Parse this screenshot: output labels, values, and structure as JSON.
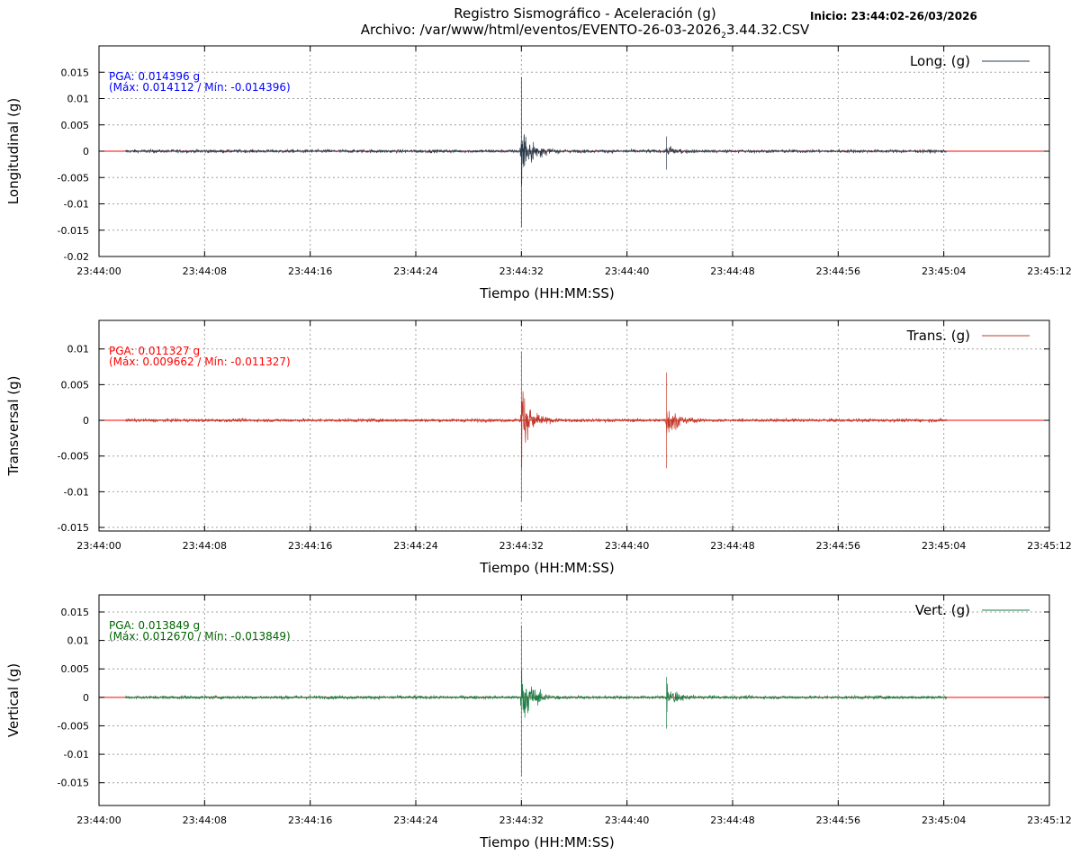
{
  "header": {
    "title_line1": "Registro Sismográfico - Aceleración (g)",
    "title_line2_a": "Archivo: /var/www/html/eventos/EVENTO-26-03-2026",
    "title_line2_sub": "2",
    "title_line2_b": "3.44.32.CSV",
    "start_label": "Inicio: 23:44:02-26/03/2026"
  },
  "chart_data": [
    {
      "type": "line",
      "ylabel": "Longitudinal (g)",
      "xlabel": "Tiempo (HH:MM:SS)",
      "xlim": [
        0,
        72
      ],
      "ylim": [
        -0.02,
        0.02
      ],
      "yticks": [
        0.015,
        0.01,
        0.005,
        0,
        -0.005,
        -0.01,
        -0.015,
        -0.02
      ],
      "ytick_labels": [
        "0.015",
        "0.01",
        "0.005",
        "0",
        "-0.005",
        "-0.01",
        "-0.015",
        "-0.02"
      ],
      "xticks": [
        0,
        8,
        16,
        24,
        32,
        40,
        48,
        56,
        64,
        72
      ],
      "xtick_labels": [
        "23:44:00",
        "23:44:08",
        "23:44:16",
        "23:44:24",
        "23:44:32",
        "23:44:40",
        "23:44:48",
        "23:44:56",
        "23:45:04",
        "23:45:12"
      ],
      "grid": true,
      "legend_position": "top-right",
      "series": [
        {
          "name": "Long. (g)",
          "color": "#2a3a4a",
          "t_range": [
            2.0,
            64.2
          ],
          "max": 0.014112,
          "min": -0.014396,
          "events": [
            {
              "t": 32.0,
              "max": 0.014112,
              "min": -0.014396
            },
            {
              "t": 43.0,
              "max": 0.0028,
              "min": -0.0035
            }
          ]
        }
      ],
      "baseline": {
        "value": 0,
        "color": "#ff0000"
      },
      "annotation": {
        "line1": "PGA: 0.014396 g",
        "line2": "(Máx: 0.014112 / Mín: -0.014396)",
        "color": "#0000ff"
      }
    },
    {
      "type": "line",
      "ylabel": "Transversal (g)",
      "xlabel": "Tiempo (HH:MM:SS)",
      "xlim": [
        0,
        72
      ],
      "ylim": [
        -0.0155,
        0.014
      ],
      "yticks": [
        0.01,
        0.005,
        0,
        -0.005,
        -0.01,
        -0.015
      ],
      "ytick_labels": [
        "0.01",
        "0.005",
        "0",
        "-0.005",
        "-0.01",
        "-0.015"
      ],
      "xticks": [
        0,
        8,
        16,
        24,
        32,
        40,
        48,
        56,
        64,
        72
      ],
      "xtick_labels": [
        "23:44:00",
        "23:44:08",
        "23:44:16",
        "23:44:24",
        "23:44:32",
        "23:44:40",
        "23:44:48",
        "23:44:56",
        "23:45:04",
        "23:45:12"
      ],
      "grid": true,
      "legend_position": "top-right",
      "series": [
        {
          "name": "Trans. (g)",
          "color": "#c0392b",
          "t_range": [
            2.0,
            64.2
          ],
          "max": 0.009662,
          "min": -0.011327,
          "events": [
            {
              "t": 32.0,
              "max": 0.009662,
              "min": -0.011327
            },
            {
              "t": 43.0,
              "max": 0.0067,
              "min": -0.0067
            }
          ]
        }
      ],
      "baseline": {
        "value": 0,
        "color": "#ff0000"
      },
      "annotation": {
        "line1": "PGA: 0.011327 g",
        "line2": "(Máx: 0.009662 / Mín: -0.011327)",
        "color": "#ff0000"
      }
    },
    {
      "type": "line",
      "ylabel": "Vertical (g)",
      "xlabel": "Tiempo (HH:MM:SS)",
      "xlim": [
        0,
        72
      ],
      "ylim": [
        -0.019,
        0.018
      ],
      "yticks": [
        0.015,
        0.01,
        0.005,
        0,
        -0.005,
        -0.01,
        -0.015
      ],
      "ytick_labels": [
        "0.015",
        "0.01",
        "0.005",
        "0",
        "-0.005",
        "-0.01",
        "-0.015"
      ],
      "xticks": [
        0,
        8,
        16,
        24,
        32,
        40,
        48,
        56,
        64,
        72
      ],
      "xtick_labels": [
        "23:44:00",
        "23:44:08",
        "23:44:16",
        "23:44:24",
        "23:44:32",
        "23:44:40",
        "23:44:48",
        "23:44:56",
        "23:45:04",
        "23:45:12"
      ],
      "grid": true,
      "legend_position": "top-right",
      "series": [
        {
          "name": "Vert. (g)",
          "color": "#1e7e45",
          "t_range": [
            2.0,
            64.2
          ],
          "max": 0.01267,
          "min": -0.013849,
          "events": [
            {
              "t": 32.0,
              "max": 0.01267,
              "min": -0.013849
            },
            {
              "t": 43.0,
              "max": 0.0036,
              "min": -0.0055
            }
          ]
        }
      ],
      "baseline": {
        "value": 0,
        "color": "#ff0000"
      },
      "annotation": {
        "line1": "PGA: 0.013849 g",
        "line2": "(Máx: 0.012670 / Mín: -0.013849)",
        "color": "#006400"
      }
    }
  ]
}
